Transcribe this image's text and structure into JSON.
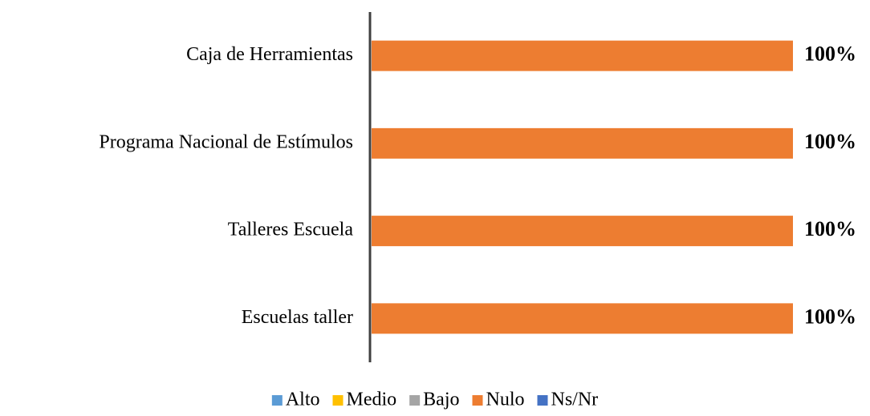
{
  "chart_data": {
    "type": "bar",
    "orientation": "horizontal",
    "stacked": true,
    "categories": [
      "Caja de Herramientas",
      "Programa Nacional de Estímulos",
      "Talleres Escuela",
      "Escuelas taller"
    ],
    "series": [
      {
        "name": "Alto",
        "color": "#5b9bd5",
        "values": [
          0,
          0,
          0,
          0
        ]
      },
      {
        "name": "Medio",
        "color": "#ffc000",
        "values": [
          0,
          0,
          0,
          0
        ]
      },
      {
        "name": "Bajo",
        "color": "#a5a5a5",
        "values": [
          0,
          0,
          0,
          0
        ]
      },
      {
        "name": "Nulo",
        "color": "#ed7d31",
        "values": [
          100,
          100,
          100,
          100
        ],
        "value_labels": [
          "100%",
          "100%",
          "100%",
          "100%"
        ]
      },
      {
        "name": "Ns/Nr",
        "color": "#4472c4",
        "values": [
          0,
          0,
          0,
          0
        ]
      }
    ],
    "xlim": [
      0,
      100
    ],
    "legend": "bottom"
  }
}
